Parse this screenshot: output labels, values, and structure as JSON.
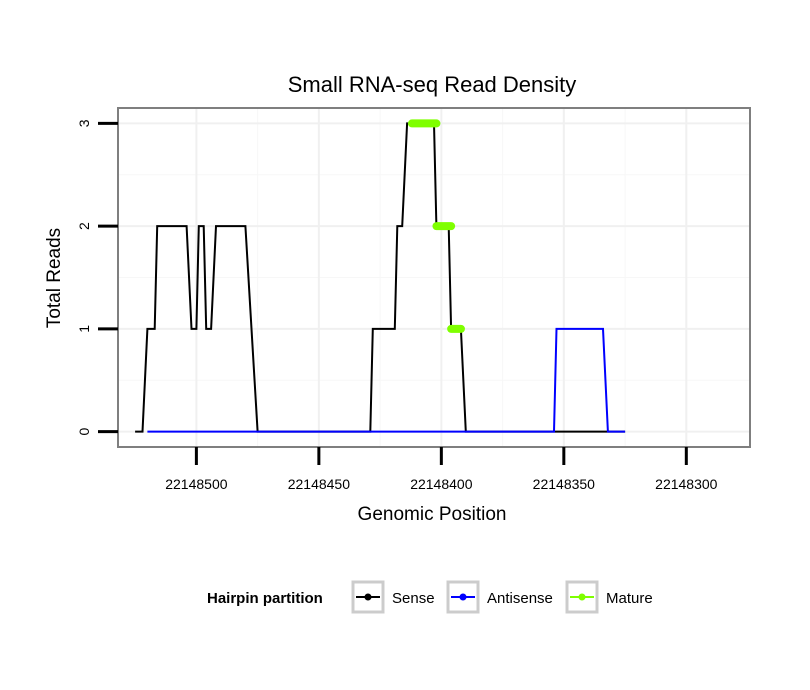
{
  "chart_data": {
    "type": "line",
    "title": "Small RNA-seq Read Density",
    "xlabel": "Genomic Position",
    "ylabel": "Total Reads",
    "xlim": [
      22148532,
      22148274
    ],
    "ylim": [
      -0.15,
      3.15
    ],
    "x_reversed": true,
    "x_ticks": [
      22148500,
      22148450,
      22148400,
      22148350,
      22148300
    ],
    "x_tick_labels": [
      "22148500",
      "22148450",
      "22148400",
      "22148350",
      "22148300"
    ],
    "y_ticks": [
      0,
      1,
      2,
      3
    ],
    "y_tick_labels": [
      "0",
      "1",
      "2",
      "3"
    ],
    "grid": true,
    "legend": {
      "title": "Hairpin partition",
      "position": "bottom",
      "entries": [
        {
          "label": "Sense",
          "color": "#000000"
        },
        {
          "label": "Antisense",
          "color": "#0000ff"
        },
        {
          "label": "Mature",
          "color": "#7fff00"
        }
      ]
    },
    "series": [
      {
        "name": "Sense",
        "color": "#000000",
        "x": [
          22148525,
          22148522,
          22148520,
          22148519,
          22148517,
          22148516,
          22148504,
          22148502,
          22148500,
          22148499,
          22148497,
          22148496,
          22148494,
          22148492,
          22148480,
          22148475,
          22148429,
          22148428,
          22148419,
          22148418,
          22148416,
          22148414,
          22148412,
          22148411,
          22148403,
          22148402,
          22148397,
          22148396,
          22148394,
          22148392,
          22148390,
          22148389,
          22148325
        ],
        "values": [
          0,
          0,
          1,
          1,
          1,
          2,
          2,
          1,
          1,
          2,
          2,
          1,
          1,
          2,
          2,
          0,
          0,
          1,
          1,
          2,
          2,
          3,
          3,
          3,
          3,
          2,
          2,
          1,
          1,
          1,
          0,
          0,
          0
        ]
      },
      {
        "name": "Antisense",
        "color": "#0000ff",
        "x": [
          22148520,
          22148354,
          22148353,
          22148334,
          22148332,
          22148325
        ],
        "values": [
          0,
          0,
          1,
          1,
          0,
          0
        ]
      },
      {
        "name": "Mature",
        "color": "#7fff00",
        "segments": [
          {
            "x": [
              22148412,
              22148402
            ],
            "values": [
              3,
              3
            ]
          },
          {
            "x": [
              22148402,
              22148396
            ],
            "values": [
              2,
              2
            ]
          },
          {
            "x": [
              22148396,
              22148392
            ],
            "values": [
              1,
              1
            ]
          }
        ]
      }
    ]
  }
}
